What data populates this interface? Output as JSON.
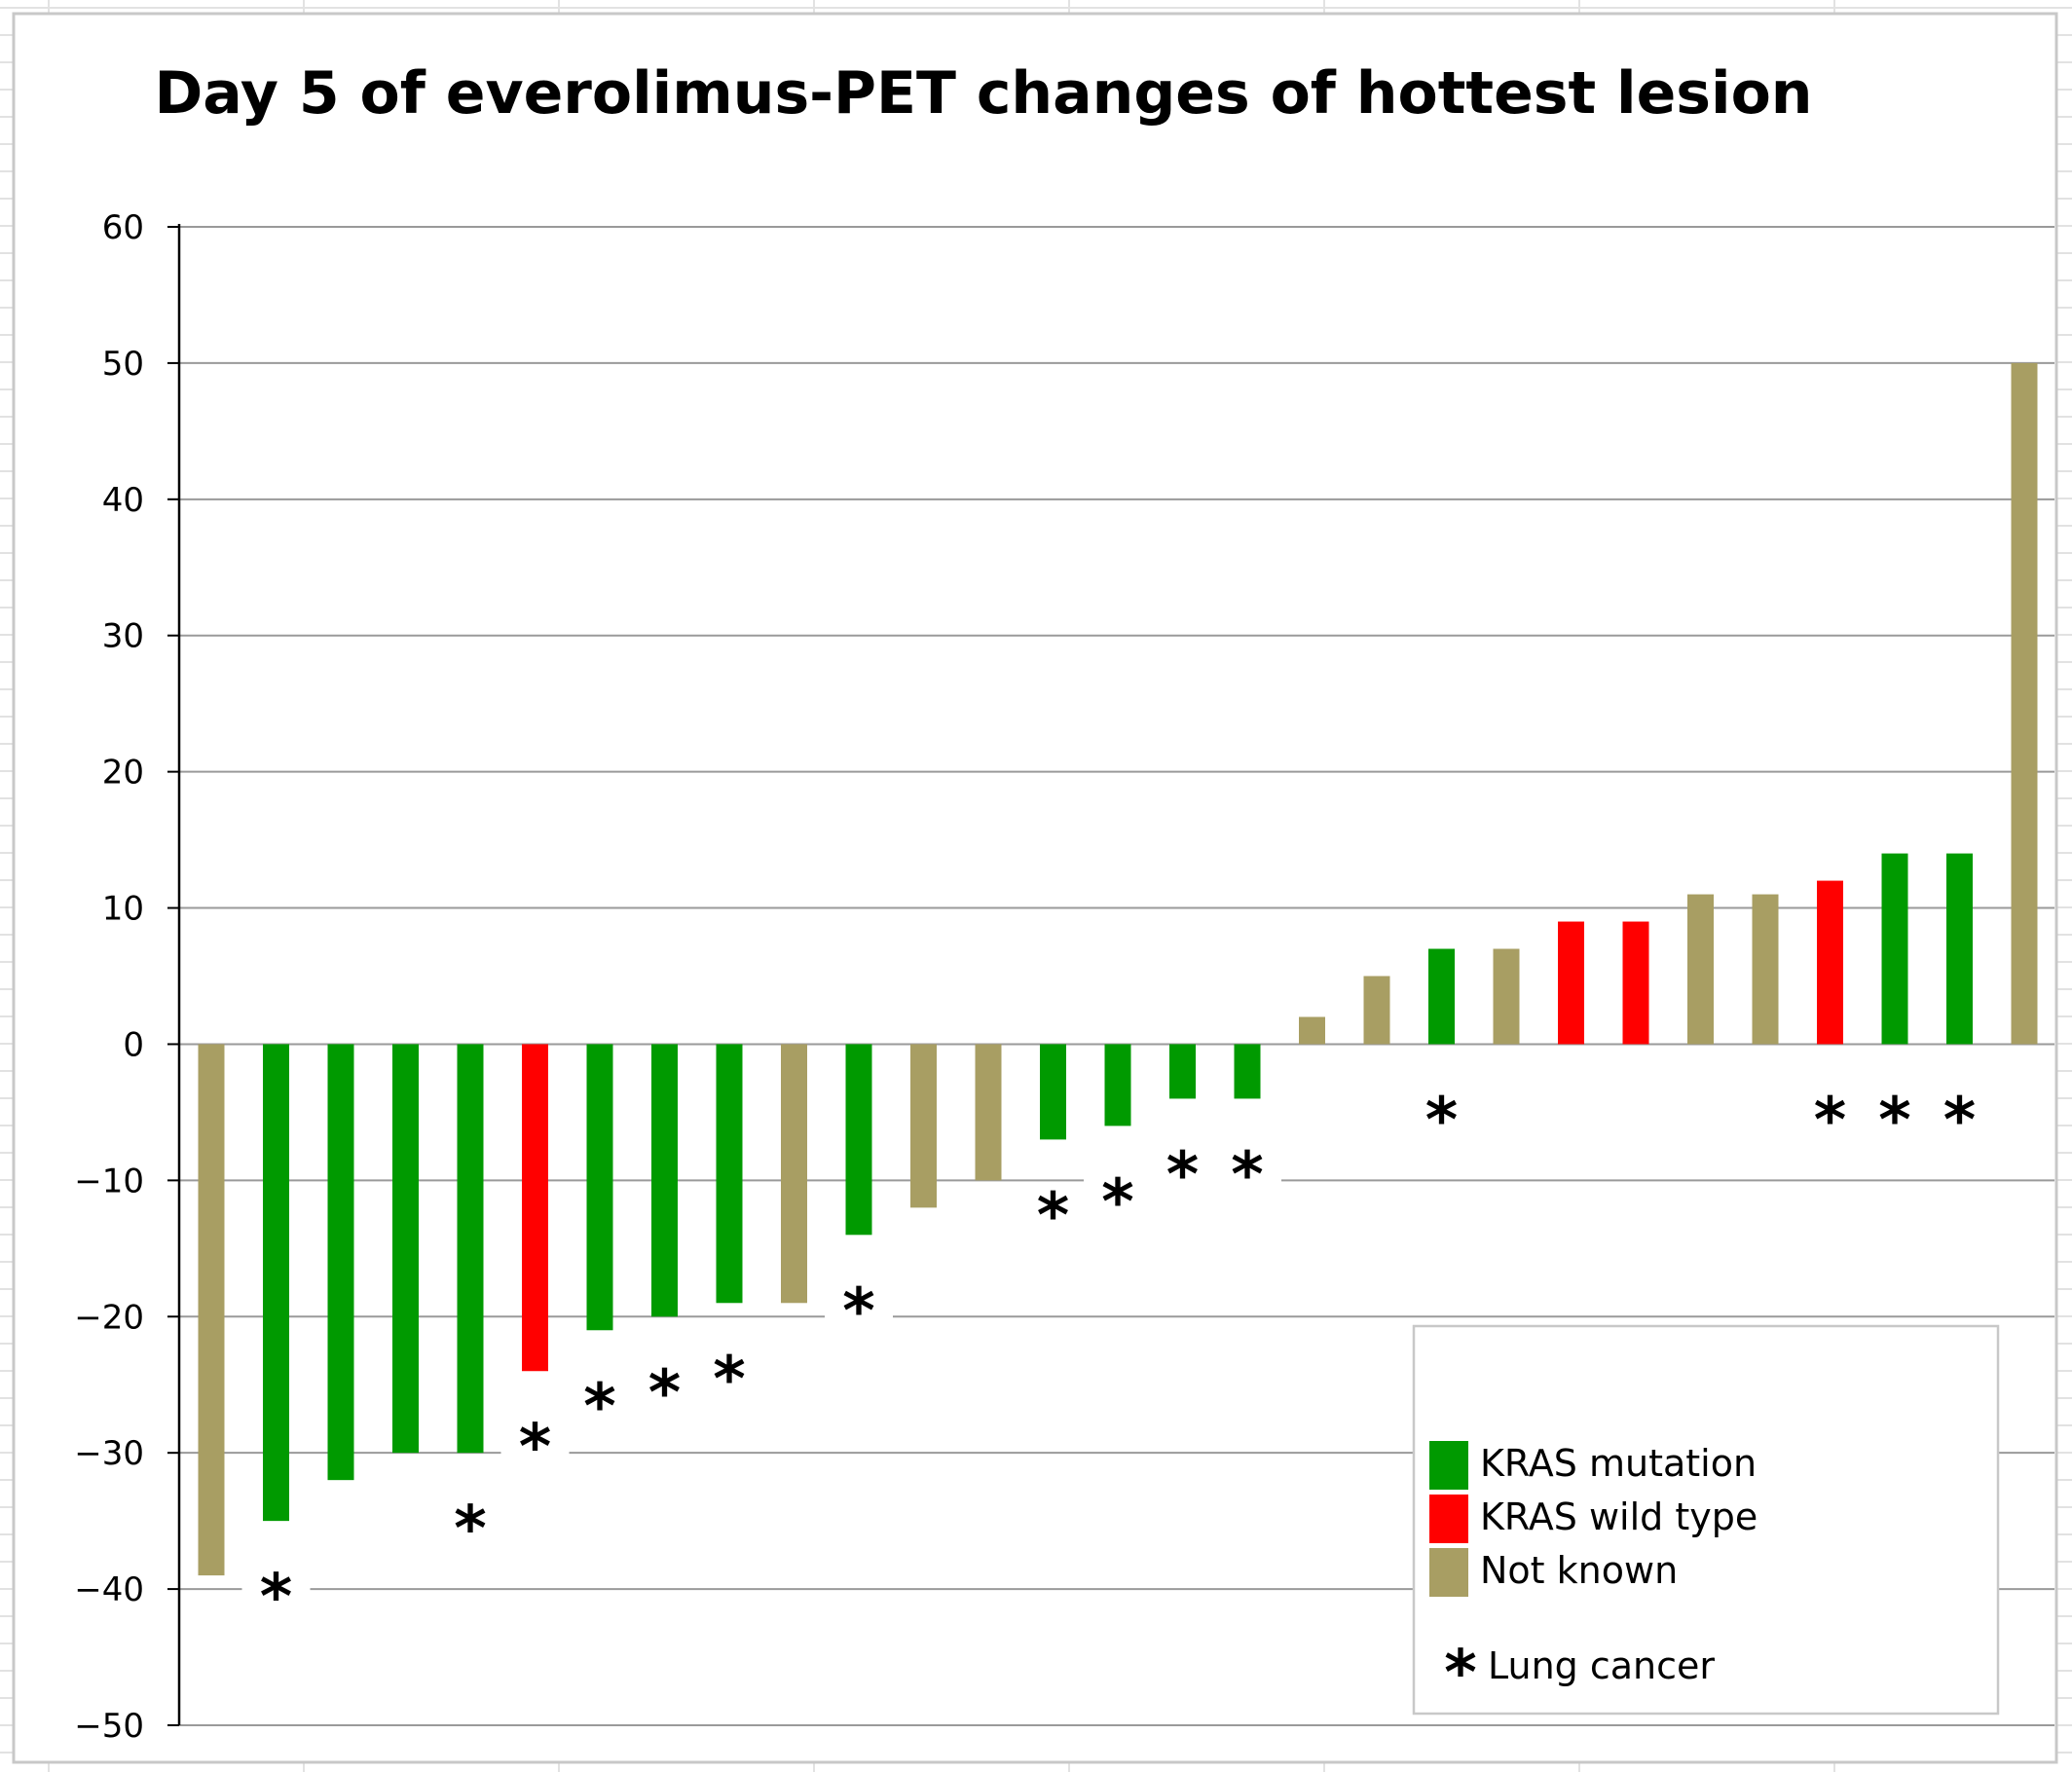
{
  "chart_data": {
    "type": "bar",
    "title": "Day 5 of everolimus-PET changes of hottest lesion",
    "xlabel": "",
    "ylabel": "",
    "ylim": [
      -50,
      60
    ],
    "y_ticks": [
      "60",
      "50",
      "40",
      "30",
      "20",
      "10",
      "0",
      "−10",
      "−20",
      "−30",
      "−40",
      "−50"
    ],
    "grid": true,
    "legend_position": "bottom-right",
    "values": [
      -39,
      -35,
      -32,
      -30,
      -30,
      -24,
      -21,
      -20,
      -19,
      -19,
      -14,
      -12,
      -10,
      -7,
      -6,
      -4,
      -4,
      2,
      5,
      7,
      7,
      9,
      9,
      11,
      11,
      12,
      14,
      14,
      50
    ],
    "groups": [
      "Not known",
      "KRAS mutation",
      "KRAS mutation",
      "KRAS mutation",
      "KRAS mutation",
      "KRAS wild type",
      "KRAS mutation",
      "KRAS mutation",
      "KRAS mutation",
      "Not known",
      "KRAS mutation",
      "Not known",
      "Not known",
      "KRAS mutation",
      "KRAS mutation",
      "KRAS mutation",
      "KRAS mutation",
      "Not known",
      "Not known",
      "KRAS mutation",
      "Not known",
      "KRAS wild type",
      "KRAS wild type",
      "Not known",
      "Not known",
      "KRAS wild type",
      "KRAS mutation",
      "KRAS mutation",
      "Not known"
    ],
    "lung_cancer": [
      false,
      true,
      false,
      false,
      true,
      true,
      true,
      true,
      true,
      false,
      true,
      false,
      false,
      true,
      true,
      true,
      true,
      false,
      false,
      true,
      false,
      false,
      false,
      false,
      false,
      true,
      true,
      true,
      false
    ],
    "marker_symbol": "*",
    "legend": [
      {
        "label": "KRAS mutation",
        "color": "#009a00"
      },
      {
        "label": "KRAS wild type",
        "color": "#ff0000"
      },
      {
        "label": "Not known",
        "color": "#a89e63"
      }
    ],
    "marker_legend": "Lung cancer"
  }
}
